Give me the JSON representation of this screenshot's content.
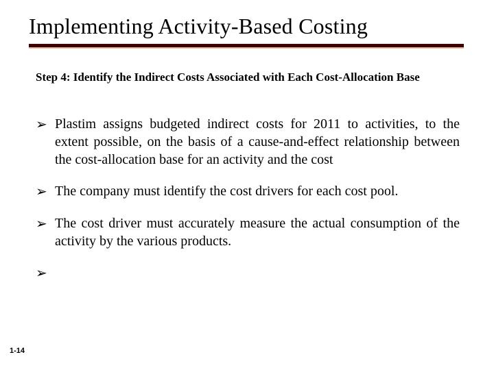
{
  "colors": {
    "background": "#ffffff",
    "text": "#000000",
    "underline_dark": "#3c0000",
    "underline_light": "#d9c7a5"
  },
  "typography": {
    "title_fontsize": 32,
    "subtitle_fontsize": 17,
    "body_fontsize": 20,
    "pagenum_fontsize": 11,
    "font_family_serif": "Times New Roman",
    "font_family_sans": "Arial"
  },
  "title": "Implementing Activity-Based Costing",
  "subtitle": "Step 4: Identify the Indirect Costs Associated with Each Cost-Allocation Base",
  "bullets": [
    "Plastim assigns budgeted indirect costs for 2011 to activities, to the extent possible, on the basis of a cause-and-effect relationship between the cost-allocation base for an activity and the cost",
    "The company must identify the cost drivers for each cost pool.",
    "The cost driver must accurately measure the actual consumption of the activity by the various products.",
    ""
  ],
  "bullet_marker": "➢",
  "page_number": "1-14"
}
